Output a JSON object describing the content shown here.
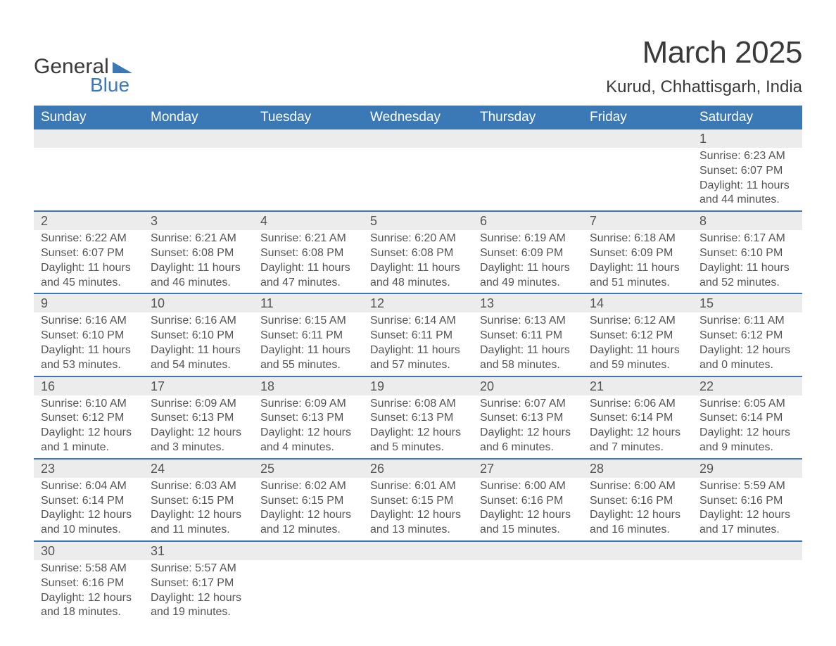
{
  "logo": {
    "word1": "General",
    "word2": "Blue",
    "word1_color": "#3a3a3a",
    "word2_color": "#3a78b6",
    "flag_color": "#3a78b6",
    "fontsize": 30
  },
  "title": "March 2025",
  "subtitle": "Kurud, Chhattisgarh, India",
  "colors": {
    "header_bg": "#3a78b6",
    "header_fg": "#ffffff",
    "numrow_bg": "#ececec",
    "row_border": "#3a78b6",
    "text": "#555555",
    "page_bg": "#ffffff"
  },
  "fonts": {
    "title_size": 44,
    "subtitle_size": 24,
    "dayhead_size": 19,
    "daynum_size": 18,
    "detail_size": 16
  },
  "day_headers": [
    "Sunday",
    "Monday",
    "Tuesday",
    "Wednesday",
    "Thursday",
    "Friday",
    "Saturday"
  ],
  "weeks": [
    [
      null,
      null,
      null,
      null,
      null,
      null,
      {
        "n": "1",
        "sunrise": "6:23 AM",
        "sunset": "6:07 PM",
        "daylight": "11 hours and 44 minutes."
      }
    ],
    [
      {
        "n": "2",
        "sunrise": "6:22 AM",
        "sunset": "6:07 PM",
        "daylight": "11 hours and 45 minutes."
      },
      {
        "n": "3",
        "sunrise": "6:21 AM",
        "sunset": "6:08 PM",
        "daylight": "11 hours and 46 minutes."
      },
      {
        "n": "4",
        "sunrise": "6:21 AM",
        "sunset": "6:08 PM",
        "daylight": "11 hours and 47 minutes."
      },
      {
        "n": "5",
        "sunrise": "6:20 AM",
        "sunset": "6:08 PM",
        "daylight": "11 hours and 48 minutes."
      },
      {
        "n": "6",
        "sunrise": "6:19 AM",
        "sunset": "6:09 PM",
        "daylight": "11 hours and 49 minutes."
      },
      {
        "n": "7",
        "sunrise": "6:18 AM",
        "sunset": "6:09 PM",
        "daylight": "11 hours and 51 minutes."
      },
      {
        "n": "8",
        "sunrise": "6:17 AM",
        "sunset": "6:10 PM",
        "daylight": "11 hours and 52 minutes."
      }
    ],
    [
      {
        "n": "9",
        "sunrise": "6:16 AM",
        "sunset": "6:10 PM",
        "daylight": "11 hours and 53 minutes."
      },
      {
        "n": "10",
        "sunrise": "6:16 AM",
        "sunset": "6:10 PM",
        "daylight": "11 hours and 54 minutes."
      },
      {
        "n": "11",
        "sunrise": "6:15 AM",
        "sunset": "6:11 PM",
        "daylight": "11 hours and 55 minutes."
      },
      {
        "n": "12",
        "sunrise": "6:14 AM",
        "sunset": "6:11 PM",
        "daylight": "11 hours and 57 minutes."
      },
      {
        "n": "13",
        "sunrise": "6:13 AM",
        "sunset": "6:11 PM",
        "daylight": "11 hours and 58 minutes."
      },
      {
        "n": "14",
        "sunrise": "6:12 AM",
        "sunset": "6:12 PM",
        "daylight": "11 hours and 59 minutes."
      },
      {
        "n": "15",
        "sunrise": "6:11 AM",
        "sunset": "6:12 PM",
        "daylight": "12 hours and 0 minutes."
      }
    ],
    [
      {
        "n": "16",
        "sunrise": "6:10 AM",
        "sunset": "6:12 PM",
        "daylight": "12 hours and 1 minute."
      },
      {
        "n": "17",
        "sunrise": "6:09 AM",
        "sunset": "6:13 PM",
        "daylight": "12 hours and 3 minutes."
      },
      {
        "n": "18",
        "sunrise": "6:09 AM",
        "sunset": "6:13 PM",
        "daylight": "12 hours and 4 minutes."
      },
      {
        "n": "19",
        "sunrise": "6:08 AM",
        "sunset": "6:13 PM",
        "daylight": "12 hours and 5 minutes."
      },
      {
        "n": "20",
        "sunrise": "6:07 AM",
        "sunset": "6:13 PM",
        "daylight": "12 hours and 6 minutes."
      },
      {
        "n": "21",
        "sunrise": "6:06 AM",
        "sunset": "6:14 PM",
        "daylight": "12 hours and 7 minutes."
      },
      {
        "n": "22",
        "sunrise": "6:05 AM",
        "sunset": "6:14 PM",
        "daylight": "12 hours and 9 minutes."
      }
    ],
    [
      {
        "n": "23",
        "sunrise": "6:04 AM",
        "sunset": "6:14 PM",
        "daylight": "12 hours and 10 minutes."
      },
      {
        "n": "24",
        "sunrise": "6:03 AM",
        "sunset": "6:15 PM",
        "daylight": "12 hours and 11 minutes."
      },
      {
        "n": "25",
        "sunrise": "6:02 AM",
        "sunset": "6:15 PM",
        "daylight": "12 hours and 12 minutes."
      },
      {
        "n": "26",
        "sunrise": "6:01 AM",
        "sunset": "6:15 PM",
        "daylight": "12 hours and 13 minutes."
      },
      {
        "n": "27",
        "sunrise": "6:00 AM",
        "sunset": "6:16 PM",
        "daylight": "12 hours and 15 minutes."
      },
      {
        "n": "28",
        "sunrise": "6:00 AM",
        "sunset": "6:16 PM",
        "daylight": "12 hours and 16 minutes."
      },
      {
        "n": "29",
        "sunrise": "5:59 AM",
        "sunset": "6:16 PM",
        "daylight": "12 hours and 17 minutes."
      }
    ],
    [
      {
        "n": "30",
        "sunrise": "5:58 AM",
        "sunset": "6:16 PM",
        "daylight": "12 hours and 18 minutes."
      },
      {
        "n": "31",
        "sunrise": "5:57 AM",
        "sunset": "6:17 PM",
        "daylight": "12 hours and 19 minutes."
      },
      null,
      null,
      null,
      null,
      null
    ]
  ],
  "labels": {
    "sunrise": "Sunrise: ",
    "sunset": "Sunset: ",
    "daylight": "Daylight: "
  }
}
